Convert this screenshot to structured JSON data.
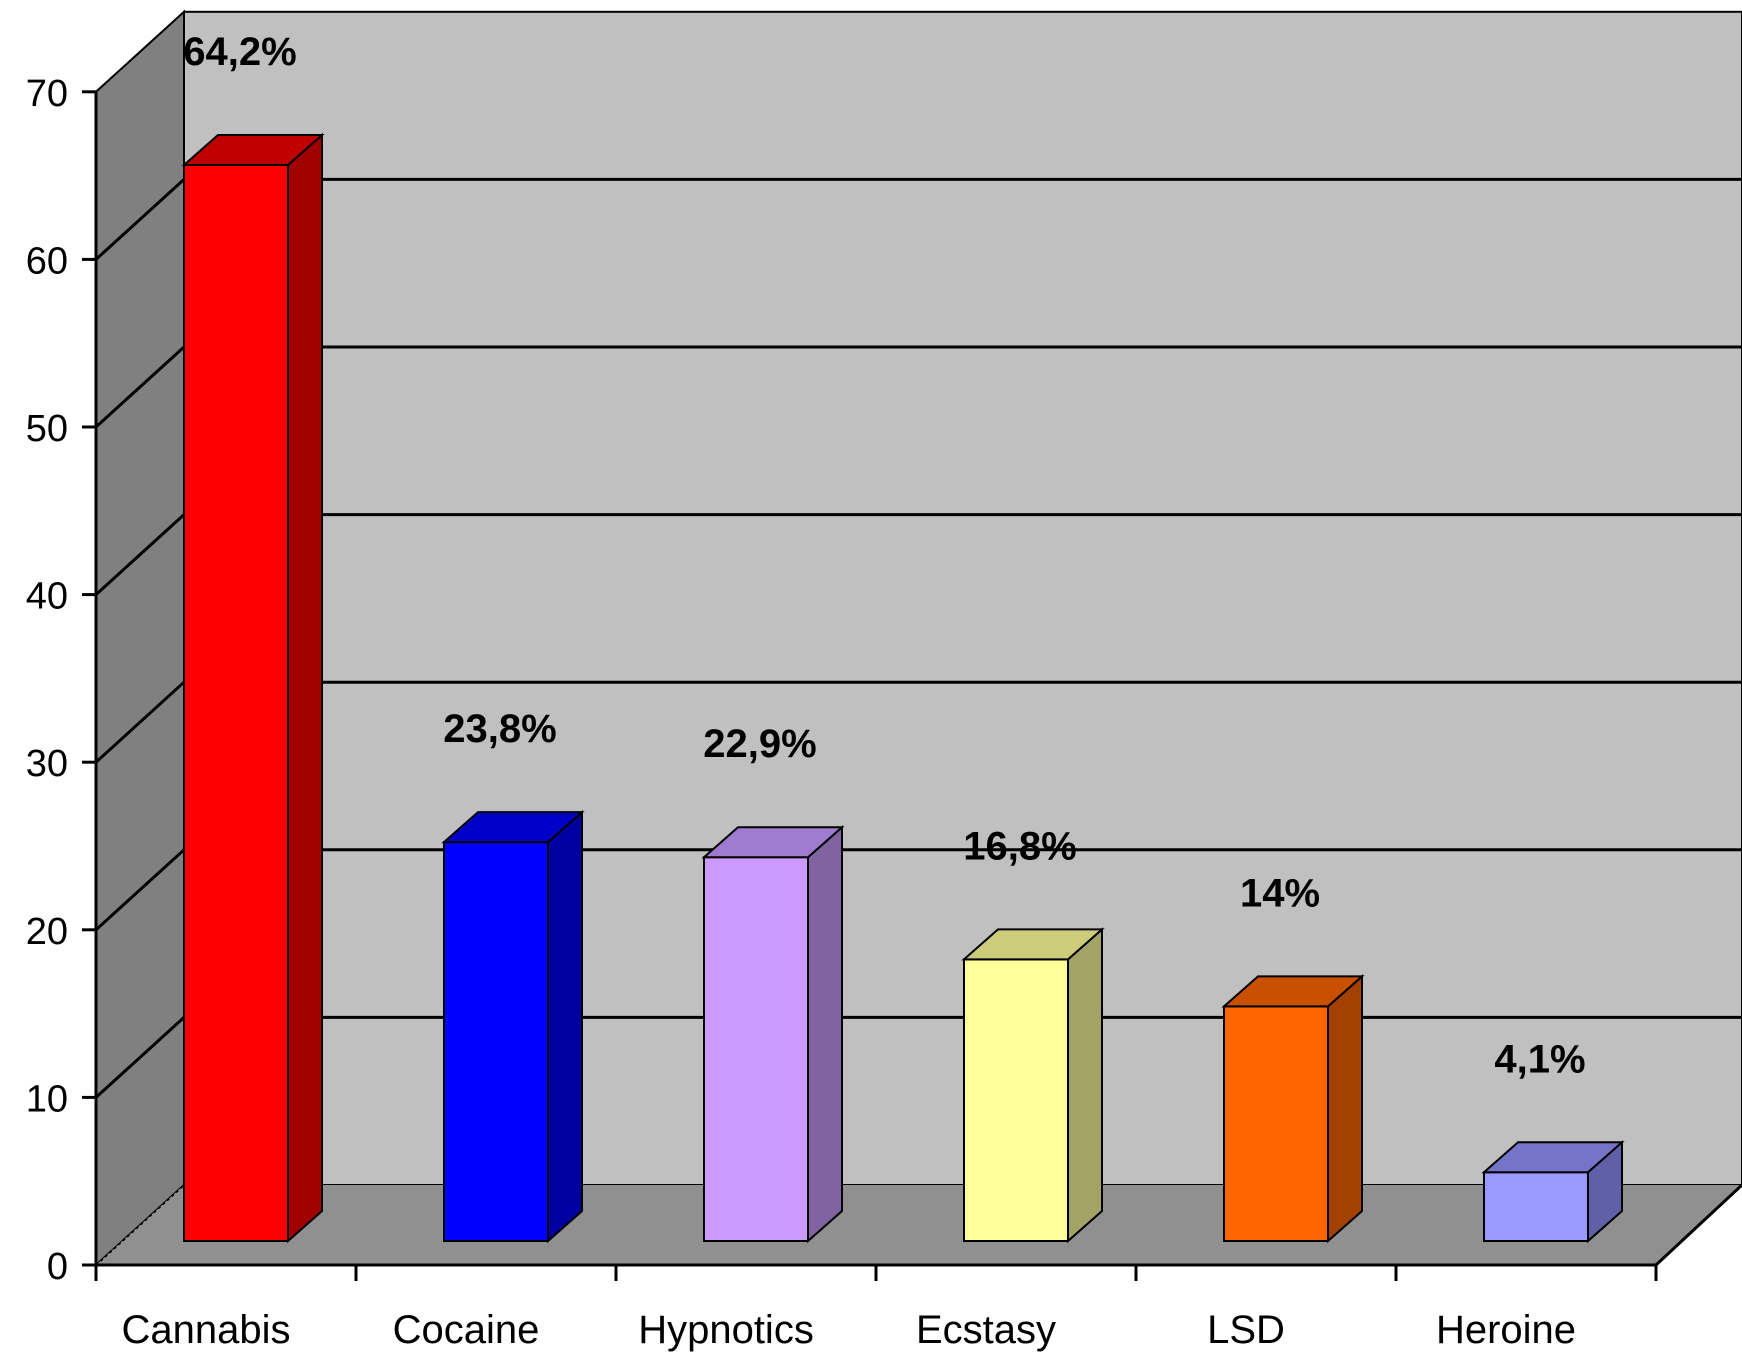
{
  "chart_data": {
    "type": "bar",
    "style": "3d-column",
    "title": "",
    "xlabel": "",
    "ylabel": "",
    "ylim": [
      0,
      70
    ],
    "yticks": [
      "0",
      "10",
      "20",
      "30",
      "40",
      "50",
      "60",
      "70"
    ],
    "grid": true,
    "legend": "none",
    "categories": [
      "Cannabis",
      "Cocaine",
      "Hypnotics",
      "Ecstasy",
      "LSD",
      "Heroine"
    ],
    "values": [
      64.2,
      23.8,
      22.9,
      16.8,
      14,
      4.1
    ],
    "data_labels": [
      "64,2%",
      "23,8%",
      "22,9%",
      "16,8%",
      "14%",
      "4,1%"
    ],
    "colors": {
      "back_wall": "#c0c0c0",
      "side_wall": "#808080",
      "floor": "#909090",
      "bars": [
        {
          "front": "#ff0000",
          "side": "#a00000",
          "top": "#c00000"
        },
        {
          "front": "#0000ff",
          "side": "#0000a0",
          "top": "#0000c8"
        },
        {
          "front": "#cc99ff",
          "side": "#8064a2",
          "top": "#a07cd0"
        },
        {
          "front": "#ffff99",
          "side": "#a3a366",
          "top": "#cccc7a"
        },
        {
          "front": "#ff6600",
          "side": "#a34100",
          "top": "#c85000"
        },
        {
          "front": "#9999ff",
          "side": "#6060a8",
          "top": "#7474c8"
        }
      ]
    }
  }
}
